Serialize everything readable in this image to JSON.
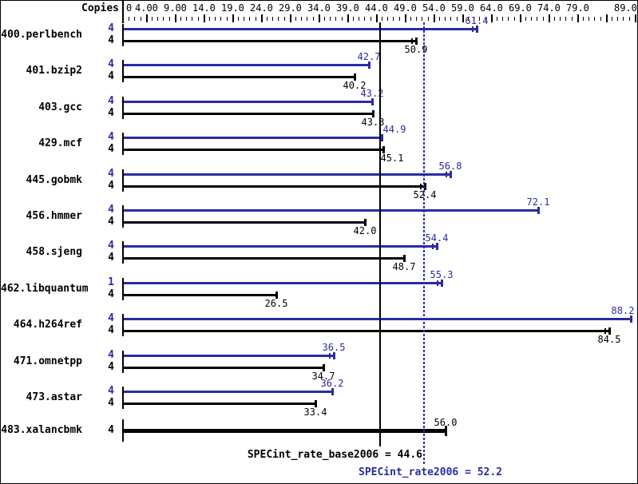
{
  "header": {
    "copies_label": "Copies"
  },
  "colors": {
    "peak_blue": "#2b2ba3",
    "base_black": "#000000",
    "background": "#ffffff"
  },
  "chart_data": {
    "type": "bar",
    "orientation": "horizontal",
    "xlim": [
      0,
      89
    ],
    "grid": false,
    "axis_labels": [
      {
        "v": 0,
        "t": "0"
      },
      {
        "v": 4,
        "t": "4.00"
      },
      {
        "v": 9,
        "t": "9.00"
      },
      {
        "v": 14,
        "t": "14.0"
      },
      {
        "v": 19,
        "t": "19.0"
      },
      {
        "v": 24,
        "t": "24.0"
      },
      {
        "v": 29,
        "t": "29.0"
      },
      {
        "v": 34,
        "t": "34.0"
      },
      {
        "v": 39,
        "t": "39.0"
      },
      {
        "v": 44,
        "t": "44.0"
      },
      {
        "v": 49,
        "t": "49.0"
      },
      {
        "v": 54,
        "t": "54.0"
      },
      {
        "v": 59,
        "t": "59.0"
      },
      {
        "v": 64,
        "t": "64.0"
      },
      {
        "v": 69,
        "t": "69.0"
      },
      {
        "v": 74,
        "t": "74.0"
      },
      {
        "v": 79,
        "t": "79.0"
      },
      {
        "v": 89,
        "t": "89.0"
      }
    ],
    "minor_tick_step": 1,
    "major_tick_step": 5,
    "series_legend": [
      {
        "name": "peak (SPECint_rate2006)",
        "color": "#2b2ba3"
      },
      {
        "name": "base (SPECint_rate_base2006)",
        "color": "#000000"
      }
    ],
    "benchmarks": [
      {
        "name": "400.perlbench",
        "rows": [
          {
            "kind": "peak",
            "copies": "4",
            "value": 61.4,
            "label": "61.4",
            "double_cap": true
          },
          {
            "kind": "base",
            "copies": "4",
            "value": 50.9,
            "label": "50.9",
            "double_cap": true
          }
        ]
      },
      {
        "name": "401.bzip2",
        "rows": [
          {
            "kind": "peak",
            "copies": "4",
            "value": 42.7,
            "label": "42.7",
            "double_cap": false
          },
          {
            "kind": "base",
            "copies": "4",
            "value": 40.2,
            "label": "40.2",
            "double_cap": false
          }
        ]
      },
      {
        "name": "403.gcc",
        "rows": [
          {
            "kind": "peak",
            "copies": "4",
            "value": 43.2,
            "label": "43.2",
            "double_cap": false
          },
          {
            "kind": "base",
            "copies": "4",
            "value": 43.3,
            "label": "43.3",
            "double_cap": false
          }
        ]
      },
      {
        "name": "429.mcf",
        "rows": [
          {
            "kind": "peak",
            "copies": "4",
            "value": 44.9,
            "label": "44.9",
            "double_cap": false,
            "label_dx": 16
          },
          {
            "kind": "base",
            "copies": "4",
            "value": 45.1,
            "label": "45.1",
            "double_cap": false,
            "label_dx": 11
          }
        ]
      },
      {
        "name": "445.gobmk",
        "rows": [
          {
            "kind": "peak",
            "copies": "4",
            "value": 56.8,
            "label": "56.8",
            "double_cap": true
          },
          {
            "kind": "base",
            "copies": "4",
            "value": 52.4,
            "label": "52.4",
            "double_cap": true
          }
        ]
      },
      {
        "name": "456.hmmer",
        "rows": [
          {
            "kind": "peak",
            "copies": "4",
            "value": 72.1,
            "label": "72.1",
            "double_cap": false
          },
          {
            "kind": "base",
            "copies": "4",
            "value": 42.0,
            "label": "42.0",
            "double_cap": false
          }
        ]
      },
      {
        "name": "458.sjeng",
        "rows": [
          {
            "kind": "peak",
            "copies": "4",
            "value": 54.4,
            "label": "54.4",
            "double_cap": true
          },
          {
            "kind": "base",
            "copies": "4",
            "value": 48.7,
            "label": "48.7",
            "double_cap": false
          }
        ]
      },
      {
        "name": "462.libquantum",
        "rows": [
          {
            "kind": "peak",
            "copies": "1",
            "value": 55.3,
            "label": "55.3",
            "double_cap": true
          },
          {
            "kind": "base",
            "copies": "4",
            "value": 26.5,
            "label": "26.5",
            "double_cap": false
          }
        ]
      },
      {
        "name": "464.h264ref",
        "rows": [
          {
            "kind": "peak",
            "copies": "4",
            "value": 88.2,
            "label": "88.2",
            "double_cap": false
          },
          {
            "kind": "base",
            "copies": "4",
            "value": 84.5,
            "label": "84.5",
            "double_cap": true
          }
        ]
      },
      {
        "name": "471.omnetpp",
        "rows": [
          {
            "kind": "peak",
            "copies": "4",
            "value": 36.5,
            "label": "36.5",
            "double_cap": true
          },
          {
            "kind": "base",
            "copies": "4",
            "value": 34.7,
            "label": "34.7",
            "double_cap": false
          }
        ]
      },
      {
        "name": "473.astar",
        "rows": [
          {
            "kind": "peak",
            "copies": "4",
            "value": 36.2,
            "label": "36.2",
            "double_cap": false
          },
          {
            "kind": "base",
            "copies": "4",
            "value": 33.4,
            "label": "33.4",
            "double_cap": false
          }
        ]
      },
      {
        "name": "483.xalancbmk",
        "rows": [
          {
            "kind": "combined",
            "copies": "4",
            "value": 56.0,
            "label": "56.0",
            "double_cap": false
          }
        ]
      }
    ],
    "reference_lines": [
      {
        "kind": "base",
        "value": 44.6
      },
      {
        "kind": "peak",
        "value": 52.2
      }
    ],
    "summary": {
      "base": {
        "label": "SPECint_rate_base2006 = 44.6",
        "value": 44.6
      },
      "peak": {
        "label": "SPECint_rate2006 = 52.2",
        "value": 52.2
      }
    }
  }
}
